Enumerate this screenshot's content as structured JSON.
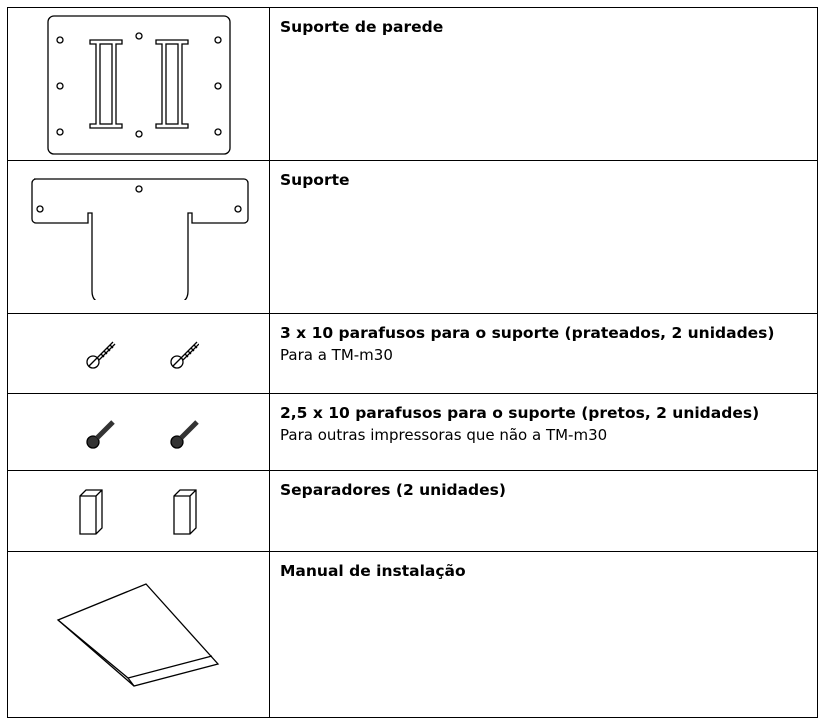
{
  "rows": [
    {
      "title": "Suporte de parede"
    },
    {
      "title": "Suporte"
    },
    {
      "title": "3 x 10 parafusos para o suporte (prateados, 2 unidades)",
      "description": "Para a TM-m30"
    },
    {
      "title": "2,5 x 10 parafusos para o suporte (pretos, 2 unidades)",
      "description": "Para outras impressoras que não a TM-m30"
    },
    {
      "title": "Separadores (2 unidades)"
    },
    {
      "title": "Manual de instalação"
    }
  ]
}
